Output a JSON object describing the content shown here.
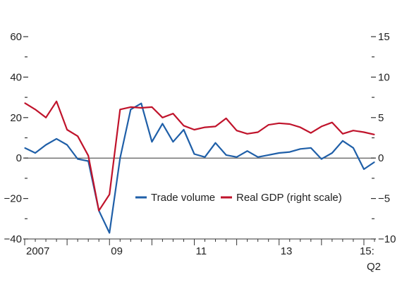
{
  "chart_data": {
    "type": "line",
    "title": "",
    "xlabel": "",
    "ylabel_left": "",
    "ylabel_right": "",
    "left_axis": {
      "ylim": [
        -40,
        60
      ],
      "ticks": [
        -40,
        -20,
        0,
        20,
        40,
        60
      ],
      "tick_labels": [
        "−40",
        "−20",
        "0",
        "20",
        "40",
        "60"
      ]
    },
    "right_axis": {
      "ylim": [
        -10,
        15
      ],
      "ticks": [
        -10,
        -5,
        0,
        5,
        10,
        15
      ],
      "tick_labels": [
        "−10",
        "−5",
        "0",
        "5",
        "10",
        "15"
      ]
    },
    "x_period": "quarterly",
    "x_start": "2007Q1",
    "x_end": "2015Q2",
    "x_ticks": [
      {
        "q": "2007Q1",
        "label": "2007"
      },
      {
        "q": "2009Q1",
        "label": "09"
      },
      {
        "q": "2011Q1",
        "label": "11"
      },
      {
        "q": "2013Q1",
        "label": "13"
      },
      {
        "q": "2015Q1",
        "label": "15:",
        "label2": "Q2"
      }
    ],
    "zero_line": true,
    "legend": {
      "placement": "lower-right"
    },
    "series": [
      {
        "name": "Trade volume",
        "axis": "left",
        "color": "#1f5fa8",
        "x": [
          "2007Q1",
          "2007Q2",
          "2007Q3",
          "2007Q4",
          "2008Q1",
          "2008Q2",
          "2008Q3",
          "2008Q4",
          "2009Q1",
          "2009Q2",
          "2009Q3",
          "2009Q4",
          "2010Q1",
          "2010Q2",
          "2010Q3",
          "2010Q4",
          "2011Q1",
          "2011Q2",
          "2011Q3",
          "2011Q4",
          "2012Q1",
          "2012Q2",
          "2012Q3",
          "2012Q4",
          "2013Q1",
          "2013Q2",
          "2013Q3",
          "2013Q4",
          "2014Q1",
          "2014Q2",
          "2014Q3",
          "2014Q4",
          "2015Q1",
          "2015Q2"
        ],
        "values": [
          5,
          2.5,
          6.5,
          9.5,
          6.5,
          -0.5,
          -1.5,
          -26,
          -37,
          0,
          24,
          27,
          8,
          17,
          8,
          14,
          2,
          0.5,
          7.5,
          1.5,
          0.5,
          3.5,
          0.5,
          1.5,
          2.5,
          3,
          4.5,
          5,
          -0.5,
          2.5,
          8.5,
          5,
          -5.5,
          -2
        ]
      },
      {
        "name": "Real GDP (right scale)",
        "axis": "right",
        "color": "#c0132b",
        "x": [
          "2007Q1",
          "2007Q2",
          "2007Q3",
          "2007Q4",
          "2008Q1",
          "2008Q2",
          "2008Q3",
          "2008Q4",
          "2009Q1",
          "2009Q2",
          "2009Q3",
          "2009Q4",
          "2010Q1",
          "2010Q2",
          "2010Q3",
          "2010Q4",
          "2011Q1",
          "2011Q2",
          "2011Q3",
          "2011Q4",
          "2012Q1",
          "2012Q2",
          "2012Q3",
          "2012Q4",
          "2013Q1",
          "2013Q2",
          "2013Q3",
          "2013Q4",
          "2014Q1",
          "2014Q2",
          "2014Q3",
          "2014Q4",
          "2015Q1",
          "2015Q2"
        ],
        "values": [
          6.8,
          6,
          5,
          7,
          3.5,
          2.7,
          0.3,
          -6.5,
          -4.5,
          6,
          6.3,
          6.2,
          6.3,
          5,
          5.5,
          4,
          3.5,
          3.8,
          3.9,
          4.9,
          3.4,
          3,
          3.2,
          4.1,
          4.3,
          4.2,
          3.8,
          3.1,
          3.9,
          4.4,
          3,
          3.4,
          3.2,
          2.9
        ]
      }
    ]
  }
}
